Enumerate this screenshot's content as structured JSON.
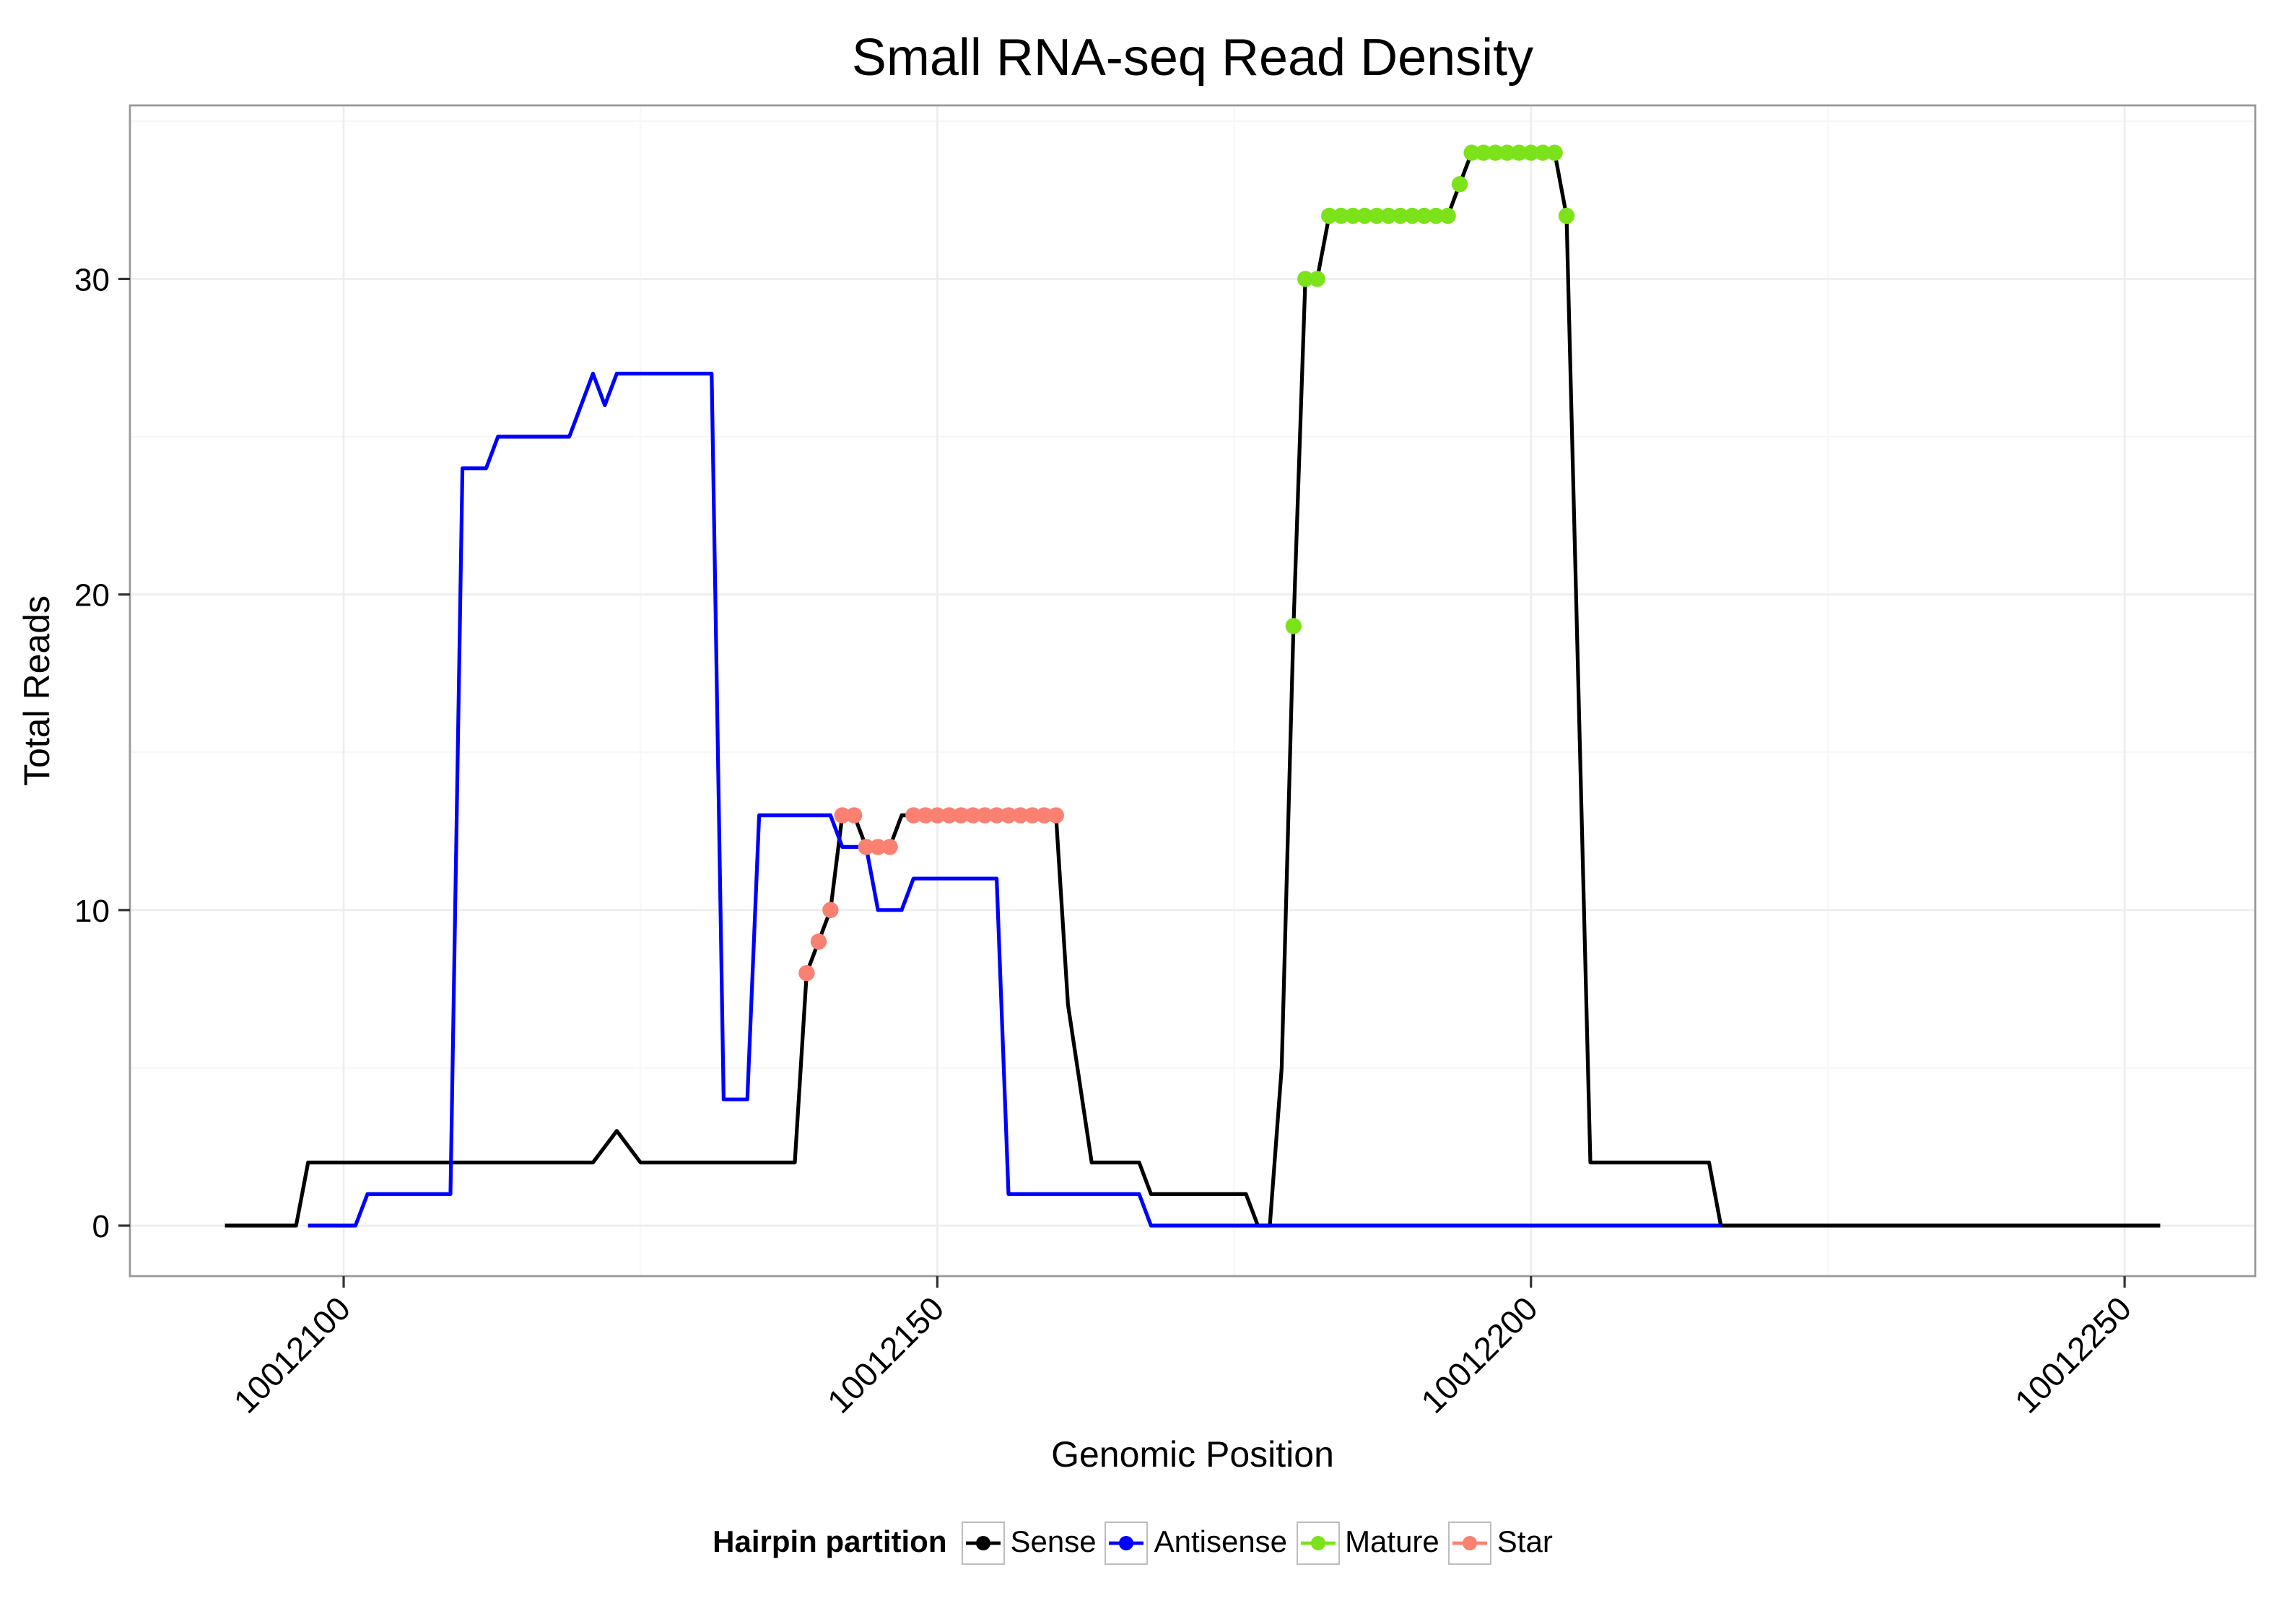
{
  "page": {
    "title": "Small RNA-seq Read Density"
  },
  "chart_data": {
    "type": "line",
    "title": "Small RNA-seq Read Density",
    "xlabel": "Genomic Position",
    "ylabel": "Total Reads",
    "x_ticks": [
      10012100,
      10012150,
      10012200,
      10012250
    ],
    "x_tick_labels": [
      "10012100",
      "10012150",
      "10012200",
      "10012250"
    ],
    "y_ticks": [
      0,
      10,
      20,
      30
    ],
    "y_tick_labels": [
      "0",
      "10",
      "20",
      "30"
    ],
    "xlim": [
      10012082,
      10012261
    ],
    "ylim": [
      -1.6,
      35.5
    ],
    "grid": true,
    "legend_title": "Hairpin partition",
    "legend_position": "bottom",
    "series": [
      {
        "name": "Sense",
        "kind": "line",
        "color": "#000000",
        "points": [
          [
            10012090,
            0
          ],
          [
            10012096,
            0
          ],
          [
            10012097,
            2
          ],
          [
            10012121,
            2
          ],
          [
            10012123,
            3
          ],
          [
            10012125,
            2
          ],
          [
            10012138,
            2
          ],
          [
            10012139,
            8
          ],
          [
            10012141,
            10
          ],
          [
            10012142,
            13
          ],
          [
            10012143,
            13
          ],
          [
            10012144,
            12
          ],
          [
            10012146,
            12
          ],
          [
            10012147,
            13
          ],
          [
            10012160,
            13
          ],
          [
            10012161,
            7
          ],
          [
            10012163,
            2
          ],
          [
            10012167,
            2
          ],
          [
            10012168,
            1
          ],
          [
            10012176,
            1
          ],
          [
            10012177,
            0
          ],
          [
            10012178,
            0
          ],
          [
            10012179,
            5
          ],
          [
            10012180,
            19
          ],
          [
            10012181,
            30
          ],
          [
            10012182,
            30
          ],
          [
            10012183,
            32
          ],
          [
            10012193,
            32
          ],
          [
            10012194,
            33
          ],
          [
            10012195,
            34
          ],
          [
            10012202,
            34
          ],
          [
            10012203,
            32
          ],
          [
            10012205,
            2
          ],
          [
            10012215,
            2
          ],
          [
            10012216,
            0
          ],
          [
            10012253,
            0
          ]
        ]
      },
      {
        "name": "Antisense",
        "kind": "line",
        "color": "#0000FF",
        "points": [
          [
            10012097,
            0
          ],
          [
            10012101,
            0
          ],
          [
            10012102,
            1
          ],
          [
            10012109,
            1
          ],
          [
            10012110,
            24
          ],
          [
            10012112,
            24
          ],
          [
            10012113,
            25
          ],
          [
            10012119,
            25
          ],
          [
            10012120,
            26
          ],
          [
            10012121,
            27
          ],
          [
            10012122,
            26
          ],
          [
            10012123,
            27
          ],
          [
            10012131,
            27
          ],
          [
            10012132,
            4
          ],
          [
            10012134,
            4
          ],
          [
            10012135,
            13
          ],
          [
            10012141,
            13
          ],
          [
            10012142,
            12
          ],
          [
            10012144,
            12
          ],
          [
            10012145,
            10
          ],
          [
            10012147,
            10
          ],
          [
            10012148,
            11
          ],
          [
            10012155,
            11
          ],
          [
            10012156,
            1
          ],
          [
            10012167,
            1
          ],
          [
            10012168,
            0
          ],
          [
            10012216,
            0
          ]
        ]
      },
      {
        "name": "Mature",
        "kind": "points",
        "color": "#7CE31B",
        "points": [
          [
            10012180,
            19
          ],
          [
            10012181,
            30
          ],
          [
            10012182,
            30
          ],
          [
            10012183,
            32
          ],
          [
            10012184,
            32
          ],
          [
            10012185,
            32
          ],
          [
            10012186,
            32
          ],
          [
            10012187,
            32
          ],
          [
            10012188,
            32
          ],
          [
            10012189,
            32
          ],
          [
            10012190,
            32
          ],
          [
            10012191,
            32
          ],
          [
            10012192,
            32
          ],
          [
            10012193,
            32
          ],
          [
            10012194,
            33
          ],
          [
            10012195,
            34
          ],
          [
            10012196,
            34
          ],
          [
            10012197,
            34
          ],
          [
            10012198,
            34
          ],
          [
            10012199,
            34
          ],
          [
            10012200,
            34
          ],
          [
            10012201,
            34
          ],
          [
            10012202,
            34
          ],
          [
            10012203,
            32
          ]
        ]
      },
      {
        "name": "Star",
        "kind": "points",
        "color": "#FA8072",
        "points": [
          [
            10012139,
            8
          ],
          [
            10012140,
            9
          ],
          [
            10012141,
            10
          ],
          [
            10012142,
            13
          ],
          [
            10012143,
            13
          ],
          [
            10012144,
            12
          ],
          [
            10012145,
            12
          ],
          [
            10012146,
            12
          ],
          [
            10012148,
            13
          ],
          [
            10012149,
            13
          ],
          [
            10012150,
            13
          ],
          [
            10012151,
            13
          ],
          [
            10012152,
            13
          ],
          [
            10012153,
            13
          ],
          [
            10012154,
            13
          ],
          [
            10012155,
            13
          ],
          [
            10012156,
            13
          ],
          [
            10012157,
            13
          ],
          [
            10012158,
            13
          ],
          [
            10012159,
            13
          ],
          [
            10012160,
            13
          ]
        ]
      }
    ]
  },
  "legend": {
    "title": "Hairpin partition",
    "items": [
      {
        "label": "Sense",
        "color": "#000000"
      },
      {
        "label": "Antisense",
        "color": "#0000FF"
      },
      {
        "label": "Mature",
        "color": "#7CE31B"
      },
      {
        "label": "Star",
        "color": "#FA8072"
      }
    ]
  },
  "colors": {
    "panel_border": "#999999",
    "grid_major": "#ededed",
    "grid_minor": "#f7f7f7",
    "tick": "#333333",
    "text": "#000000"
  }
}
